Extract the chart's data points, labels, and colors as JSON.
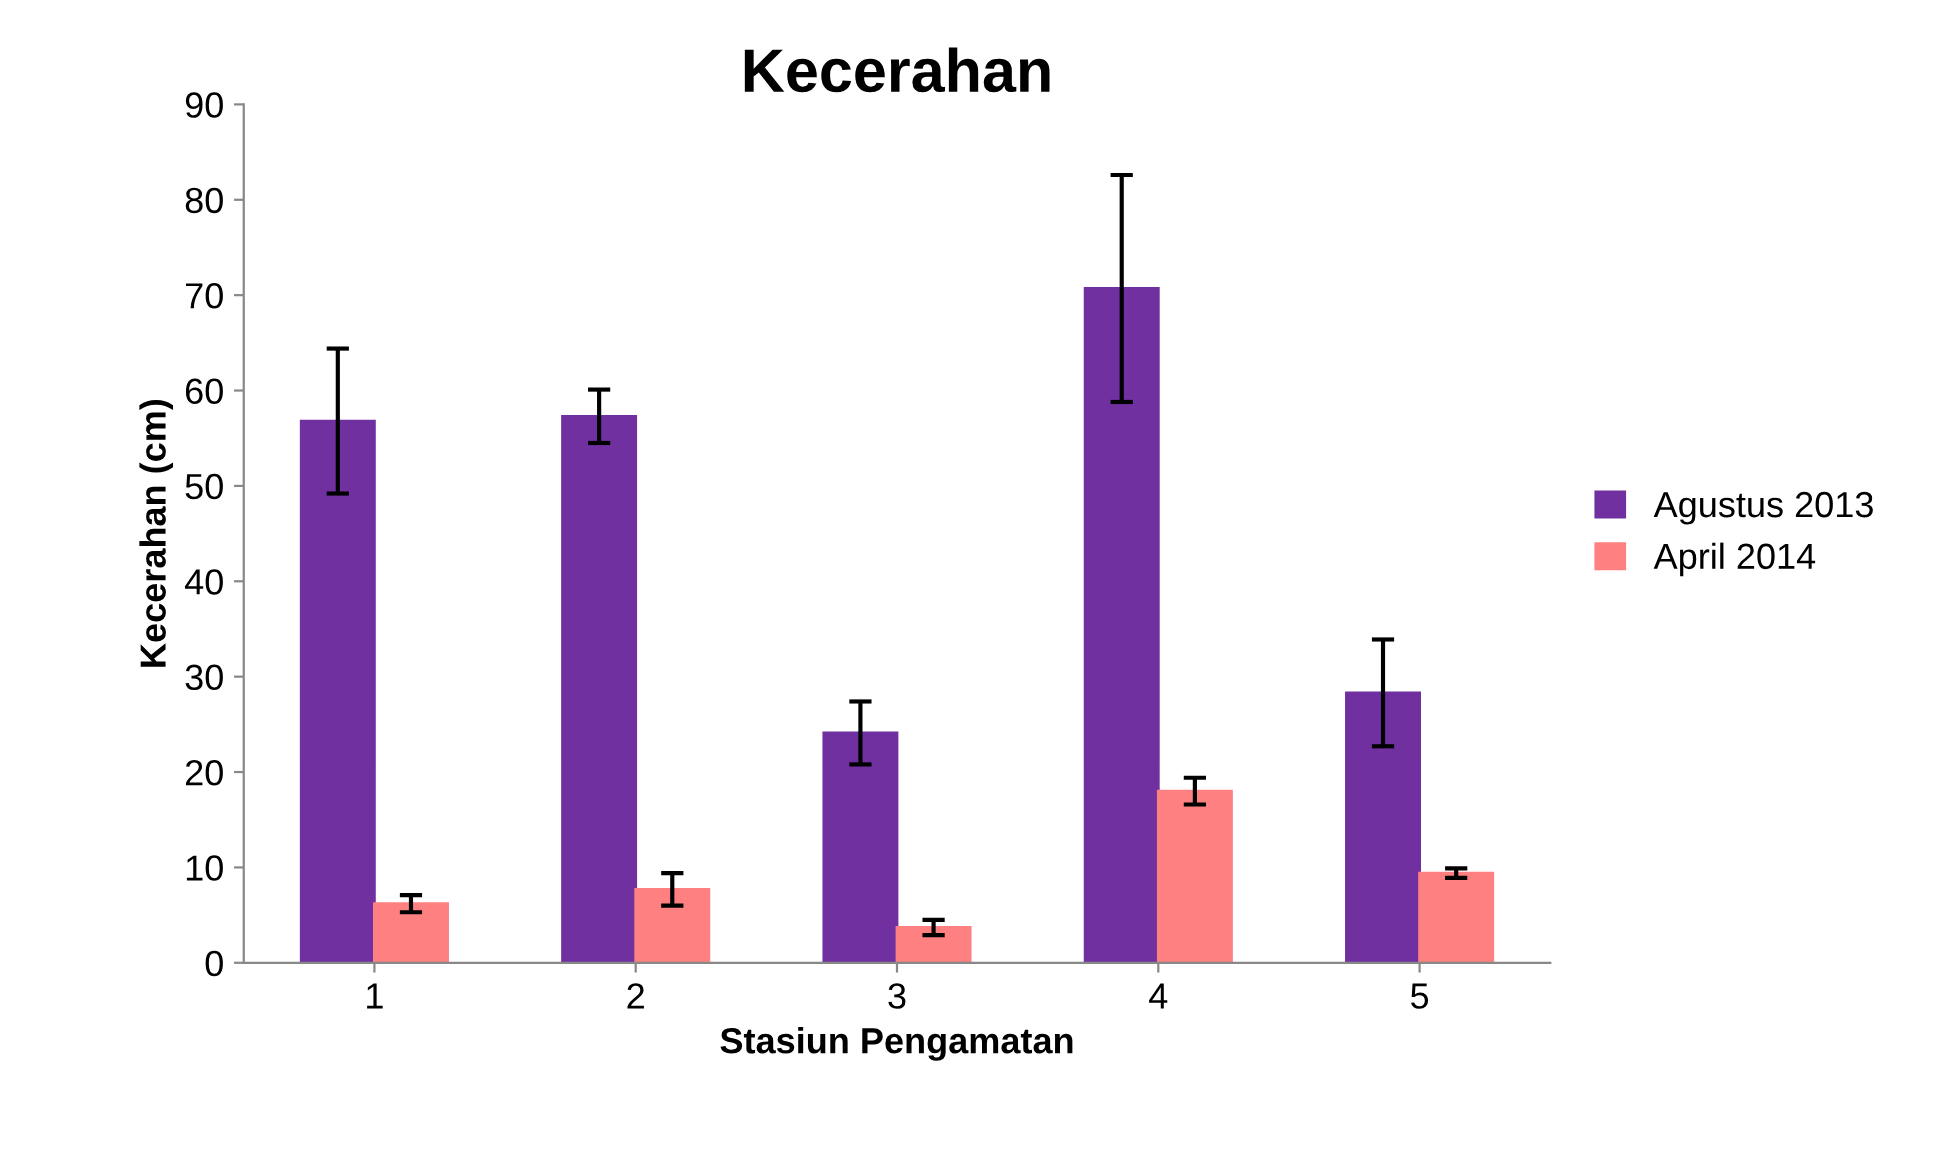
{
  "chart_data": {
    "type": "bar",
    "title": "Kecerahan",
    "xlabel": "Stasiun Pengamatan",
    "ylabel": "Kecerahan (cm)",
    "categories": [
      "1",
      "2",
      "3",
      "4",
      "5"
    ],
    "series": [
      {
        "name": "Agustus 2013",
        "color": "#7030a0",
        "values": [
          56.8,
          57.3,
          24.1,
          70.7,
          28.3
        ],
        "errors": [
          7.6,
          2.8,
          3.3,
          11.9,
          5.6
        ]
      },
      {
        "name": "April 2014",
        "color": "#ff8080",
        "values": [
          6.2,
          7.7,
          3.7,
          18.0,
          9.4
        ],
        "errors": [
          0.9,
          1.7,
          0.8,
          1.4,
          0.5
        ]
      }
    ],
    "ylim": [
      0,
      90
    ],
    "yticks": [
      0,
      10,
      20,
      30,
      40,
      50,
      60,
      70,
      80,
      90
    ],
    "grid": false,
    "legend": "right"
  }
}
